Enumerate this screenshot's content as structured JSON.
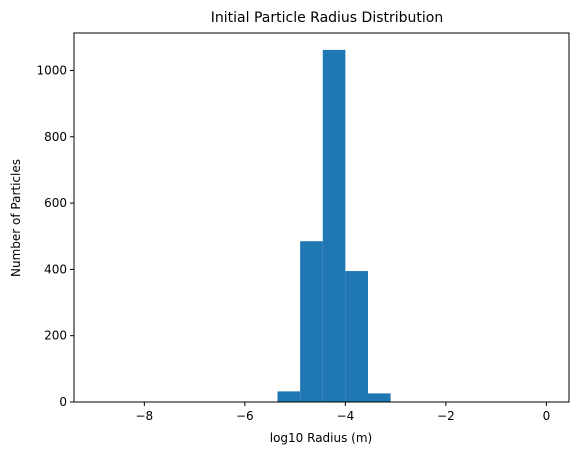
{
  "chart_data": {
    "type": "bar",
    "title": "Initial Particle Radius Distribution",
    "xlabel": "log10 Radius (m)",
    "ylabel": "Number of Particles",
    "xlim": [
      -9.4,
      0.45
    ],
    "ylim": [
      0,
      1113
    ],
    "xticks": [
      -8,
      -6,
      -4,
      -2,
      0
    ],
    "xtick_labels": [
      "−8",
      "−6",
      "−4",
      "−2",
      "0"
    ],
    "yticks": [
      0,
      200,
      400,
      600,
      800,
      1000
    ],
    "ytick_labels": [
      "0",
      "200",
      "400",
      "600",
      "800",
      "1000"
    ],
    "bin_width": 0.45,
    "bins": [
      {
        "x0": -8.95,
        "x1": -8.5,
        "count": 0
      },
      {
        "x0": -8.5,
        "x1": -8.05,
        "count": 0
      },
      {
        "x0": -8.05,
        "x1": -7.6,
        "count": 0
      },
      {
        "x0": -7.6,
        "x1": -7.15,
        "count": 0
      },
      {
        "x0": -7.15,
        "x1": -6.7,
        "count": 0
      },
      {
        "x0": -6.7,
        "x1": -6.25,
        "count": 0
      },
      {
        "x0": -6.25,
        "x1": -5.8,
        "count": 0
      },
      {
        "x0": -5.8,
        "x1": -5.35,
        "count": 0
      },
      {
        "x0": -5.35,
        "x1": -4.9,
        "count": 32
      },
      {
        "x0": -4.9,
        "x1": -4.45,
        "count": 485
      },
      {
        "x0": -4.45,
        "x1": -4.0,
        "count": 1062
      },
      {
        "x0": -4.0,
        "x1": -3.55,
        "count": 395
      },
      {
        "x0": -3.55,
        "x1": -3.1,
        "count": 26
      },
      {
        "x0": -3.1,
        "x1": -2.65,
        "count": 0
      },
      {
        "x0": -2.65,
        "x1": -2.2,
        "count": 0
      },
      {
        "x0": -2.2,
        "x1": -1.75,
        "count": 0
      },
      {
        "x0": -1.75,
        "x1": -1.3,
        "count": 0
      },
      {
        "x0": -1.3,
        "x1": -0.85,
        "count": 0
      },
      {
        "x0": -0.85,
        "x1": -0.4,
        "count": 0
      },
      {
        "x0": -0.4,
        "x1": 0.0,
        "count": 0
      }
    ],
    "bar_color": "#1f77b4",
    "grid": false,
    "legend": "none"
  }
}
